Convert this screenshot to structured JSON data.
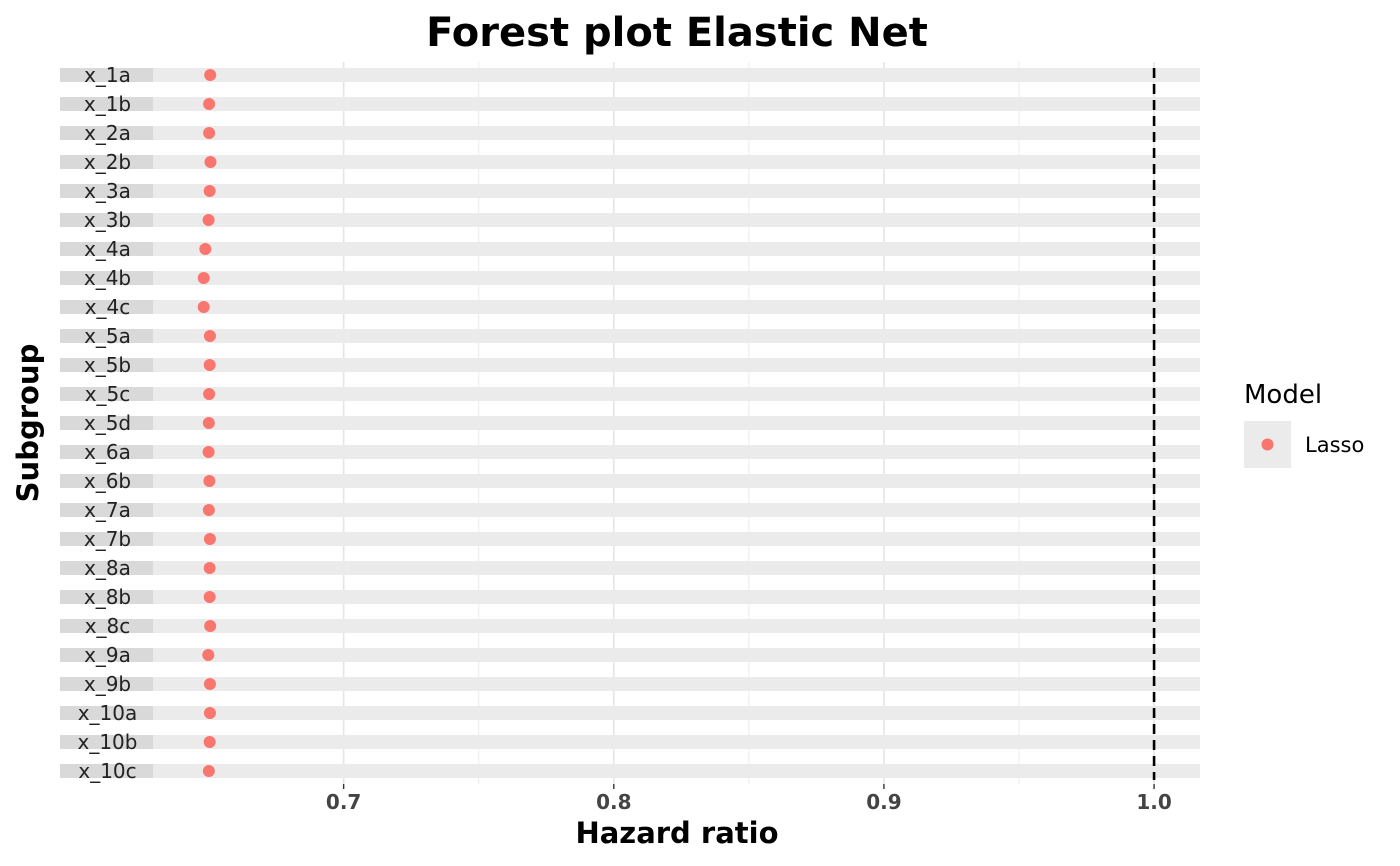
{
  "chart_data": {
    "type": "scatter",
    "title": "Forest plot Elastic Net",
    "xlabel": "Hazard ratio",
    "ylabel": "Subgroup",
    "xlim": [
      0.595,
      1.017
    ],
    "x_ticks": [
      "0.7",
      "0.8",
      "0.9",
      "1.0"
    ],
    "x_tick_values": [
      0.7,
      0.8,
      0.9,
      1.0
    ],
    "reference_line": 1.0,
    "grid": true,
    "legend": {
      "title": "Model",
      "placement": "right"
    },
    "categories": [
      "x_1a",
      "x_1b",
      "x_2a",
      "x_2b",
      "x_3a",
      "x_3b",
      "x_4a",
      "x_4b",
      "x_4c",
      "x_5a",
      "x_5b",
      "x_5c",
      "x_5d",
      "x_6a",
      "x_6b",
      "x_7a",
      "x_7b",
      "x_8a",
      "x_8b",
      "x_8c",
      "x_9a",
      "x_9b",
      "x_10a",
      "x_10b",
      "x_10c"
    ],
    "series": [
      {
        "name": "Lasso",
        "color": "#F8766D",
        "values": [
          0.6506,
          0.6502,
          0.6502,
          0.6507,
          0.6504,
          0.65,
          0.6488,
          0.6482,
          0.6482,
          0.6505,
          0.6504,
          0.6502,
          0.6501,
          0.65,
          0.6503,
          0.6501,
          0.6505,
          0.6504,
          0.6504,
          0.6506,
          0.6499,
          0.6505,
          0.6505,
          0.6504,
          0.6501
        ]
      }
    ]
  }
}
